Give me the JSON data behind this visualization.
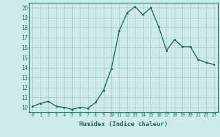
{
  "x": [
    0,
    1,
    2,
    3,
    4,
    5,
    6,
    7,
    8,
    9,
    10,
    11,
    12,
    13,
    14,
    15,
    16,
    17,
    18,
    19,
    20,
    21,
    22,
    23
  ],
  "y": [
    10.1,
    10.4,
    10.6,
    10.1,
    10.0,
    9.8,
    10.0,
    9.9,
    10.5,
    11.7,
    13.9,
    17.7,
    19.5,
    20.1,
    19.3,
    20.0,
    18.1,
    15.7,
    16.8,
    16.1,
    16.1,
    14.8,
    14.5,
    14.3
  ],
  "xlim": [
    -0.5,
    23.5
  ],
  "ylim": [
    9.5,
    20.5
  ],
  "yticks": [
    10,
    11,
    12,
    13,
    14,
    15,
    16,
    17,
    18,
    19,
    20
  ],
  "xticks": [
    0,
    1,
    2,
    3,
    4,
    5,
    6,
    7,
    8,
    9,
    10,
    11,
    12,
    13,
    14,
    15,
    16,
    17,
    18,
    19,
    20,
    21,
    22,
    23
  ],
  "xlabel": "Humidex (Indice chaleur)",
  "line_color": "#1a6b5a",
  "marker": "s",
  "marker_size": 2.0,
  "bg_color": "#ceeaea",
  "grid_color": "#aacece",
  "spine_color": "#1a6b5a"
}
